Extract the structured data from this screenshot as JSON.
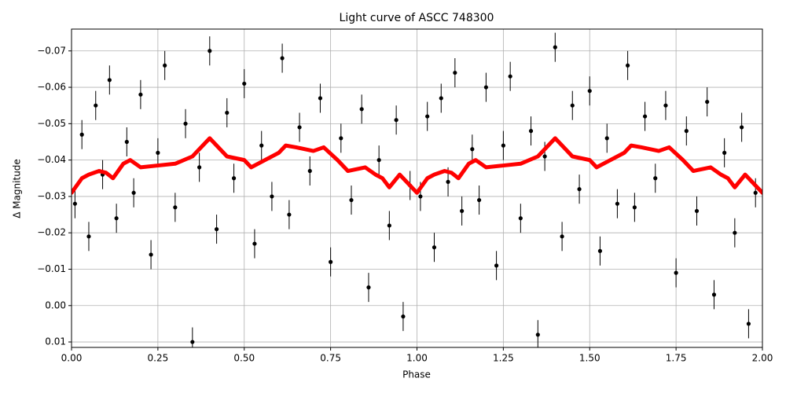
{
  "chart_data": {
    "type": "scatter",
    "title": "Light curve of ASCC 748300",
    "xlabel": "Phase",
    "ylabel": "Δ Magnitude",
    "xlim": [
      0,
      2
    ],
    "ylim": [
      0.0115,
      -0.076
    ],
    "grid": true,
    "xticks": [
      {
        "value": 0,
        "label": "0.00"
      },
      {
        "value": 0.25,
        "label": "0.25"
      },
      {
        "value": 0.5,
        "label": "0.50"
      },
      {
        "value": 0.75,
        "label": "0.75"
      },
      {
        "value": 1,
        "label": "1.00"
      },
      {
        "value": 1.25,
        "label": "1.25"
      },
      {
        "value": 1.5,
        "label": "1.50"
      },
      {
        "value": 1.75,
        "label": "1.75"
      },
      {
        "value": 2,
        "label": "2.00"
      }
    ],
    "yticks": [
      {
        "value": -0.07,
        "label": "−0.07"
      },
      {
        "value": -0.06,
        "label": "−0.06"
      },
      {
        "value": -0.05,
        "label": "−0.05"
      },
      {
        "value": -0.04,
        "label": "−0.04"
      },
      {
        "value": -0.03,
        "label": "−0.03"
      },
      {
        "value": -0.02,
        "label": "−0.02"
      },
      {
        "value": -0.01,
        "label": "−0.01"
      },
      {
        "value": 0,
        "label": "0.00"
      },
      {
        "value": 0.01,
        "label": "0.01"
      }
    ],
    "series": [
      {
        "mark": "errorbar",
        "color": "#000000",
        "yerr": 0.004,
        "x": [
          0.01,
          0.03,
          0.05,
          0.07,
          0.09,
          0.11,
          0.13,
          0.16,
          0.18,
          0.2,
          0.23,
          0.25,
          0.27,
          0.3,
          0.33,
          0.35,
          0.37,
          0.4,
          0.42,
          0.45,
          0.47,
          0.5,
          0.53,
          0.55,
          0.58,
          0.61,
          0.63,
          0.66,
          0.69,
          0.72,
          0.75,
          0.78,
          0.81,
          0.84,
          0.86,
          0.89,
          0.92,
          0.94,
          0.96,
          0.98,
          1.01,
          1.03,
          1.05,
          1.07,
          1.09,
          1.11,
          1.13,
          1.16,
          1.18,
          1.2,
          1.23,
          1.25,
          1.27,
          1.3,
          1.33,
          1.35,
          1.37,
          1.4,
          1.42,
          1.45,
          1.47,
          1.5,
          1.53,
          1.55,
          1.58,
          1.61,
          1.63,
          1.66,
          1.69,
          1.72,
          1.75,
          1.78,
          1.81,
          1.84,
          1.86,
          1.89,
          1.92,
          1.94,
          1.96,
          1.98
        ],
        "y": [
          -0.028,
          -0.047,
          -0.019,
          -0.055,
          -0.036,
          -0.062,
          -0.024,
          -0.045,
          -0.031,
          -0.058,
          -0.014,
          -0.042,
          -0.066,
          -0.027,
          -0.05,
          0.01,
          -0.038,
          -0.07,
          -0.021,
          -0.053,
          -0.035,
          -0.061,
          -0.017,
          -0.044,
          -0.03,
          -0.068,
          -0.025,
          -0.049,
          -0.037,
          -0.057,
          -0.012,
          -0.046,
          -0.029,
          -0.054,
          -0.005,
          -0.04,
          -0.022,
          -0.051,
          0.003,
          -0.033,
          -0.03,
          -0.052,
          -0.016,
          -0.057,
          -0.034,
          -0.064,
          -0.026,
          -0.043,
          -0.029,
          -0.06,
          -0.011,
          -0.044,
          -0.063,
          -0.024,
          -0.048,
          0.008,
          -0.041,
          -0.071,
          -0.019,
          -0.055,
          -0.032,
          -0.059,
          -0.015,
          -0.046,
          -0.028,
          -0.066,
          -0.027,
          -0.052,
          -0.035,
          -0.055,
          -0.009,
          -0.048,
          -0.026,
          -0.056,
          -0.003,
          -0.042,
          -0.02,
          -0.049,
          0.005,
          -0.031
        ]
      },
      {
        "mark": "line",
        "color": "#ff0000",
        "x": [
          0,
          0.03,
          0.05,
          0.08,
          0.1,
          0.12,
          0.15,
          0.17,
          0.2,
          0.25,
          0.3,
          0.35,
          0.38,
          0.4,
          0.42,
          0.45,
          0.5,
          0.52,
          0.55,
          0.6,
          0.62,
          0.65,
          0.7,
          0.73,
          0.77,
          0.8,
          0.85,
          0.88,
          0.9,
          0.92,
          0.95,
          0.97,
          1,
          1.03,
          1.05,
          1.08,
          1.1,
          1.12,
          1.15,
          1.17,
          1.2,
          1.25,
          1.3,
          1.35,
          1.38,
          1.4,
          1.42,
          1.45,
          1.5,
          1.52,
          1.55,
          1.6,
          1.62,
          1.65,
          1.7,
          1.73,
          1.77,
          1.8,
          1.85,
          1.88,
          1.9,
          1.92,
          1.95,
          1.97,
          2
        ],
        "y": [
          -0.031,
          -0.035,
          -0.036,
          -0.037,
          -0.0365,
          -0.035,
          -0.039,
          -0.04,
          -0.038,
          -0.0385,
          -0.039,
          -0.041,
          -0.044,
          -0.046,
          -0.044,
          -0.041,
          -0.04,
          -0.038,
          -0.0395,
          -0.042,
          -0.044,
          -0.0435,
          -0.0425,
          -0.0435,
          -0.04,
          -0.037,
          -0.038,
          -0.036,
          -0.035,
          -0.0325,
          -0.036,
          -0.034,
          -0.031,
          -0.035,
          -0.036,
          -0.037,
          -0.0365,
          -0.035,
          -0.039,
          -0.04,
          -0.038,
          -0.0385,
          -0.039,
          -0.041,
          -0.044,
          -0.046,
          -0.044,
          -0.041,
          -0.04,
          -0.038,
          -0.0395,
          -0.042,
          -0.044,
          -0.0435,
          -0.0425,
          -0.0435,
          -0.04,
          -0.037,
          -0.038,
          -0.036,
          -0.035,
          -0.0325,
          -0.036,
          -0.034,
          -0.031
        ]
      }
    ]
  }
}
